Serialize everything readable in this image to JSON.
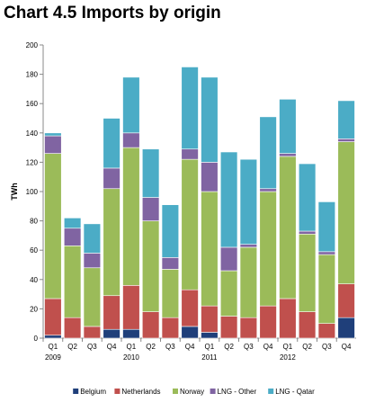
{
  "title": "Chart 4.5 Imports by origin",
  "chart_data": {
    "type": "bar",
    "stacked": true,
    "ylabel": "TWh",
    "ylim": [
      0,
      200
    ],
    "yticks": [
      0,
      20,
      40,
      60,
      80,
      100,
      120,
      140,
      160,
      180,
      200
    ],
    "grid": false,
    "legend_position": "bottom",
    "categories": [
      "Q1",
      "Q2",
      "Q3",
      "Q4",
      "Q1",
      "Q2",
      "Q3",
      "Q4",
      "Q1",
      "Q2",
      "Q3",
      "Q4",
      "Q1",
      "Q2",
      "Q3",
      "Q4"
    ],
    "year_labels": [
      {
        "label": "2009",
        "index": 0
      },
      {
        "label": "2010",
        "index": 4
      },
      {
        "label": "2011",
        "index": 8
      },
      {
        "label": "2012",
        "index": 12
      }
    ],
    "series": [
      {
        "name": "Belgium",
        "color": "#1f3f7a",
        "values": [
          2,
          0,
          0,
          6,
          6,
          0,
          0,
          8,
          4,
          0,
          0,
          0,
          0,
          0,
          0,
          14
        ]
      },
      {
        "name": "Netherlands",
        "color": "#c0504d",
        "values": [
          25,
          14,
          8,
          23,
          30,
          18,
          14,
          25,
          18,
          15,
          14,
          22,
          27,
          18,
          10,
          23
        ]
      },
      {
        "name": "Norway",
        "color": "#9bbb59",
        "values": [
          99,
          49,
          40,
          73,
          94,
          62,
          33,
          89,
          78,
          31,
          48,
          78,
          97,
          53,
          47,
          97
        ]
      },
      {
        "name": "LNG - Other",
        "color": "#8064a2",
        "values": [
          12,
          12,
          10,
          14,
          10,
          16,
          8,
          7,
          20,
          16,
          2,
          2,
          2,
          2,
          2,
          2
        ]
      },
      {
        "name": "LNG - Qatar",
        "color": "#4bacc6",
        "values": [
          2,
          7,
          20,
          34,
          38,
          33,
          36,
          56,
          58,
          65,
          58,
          49,
          37,
          46,
          34,
          26
        ]
      }
    ]
  }
}
